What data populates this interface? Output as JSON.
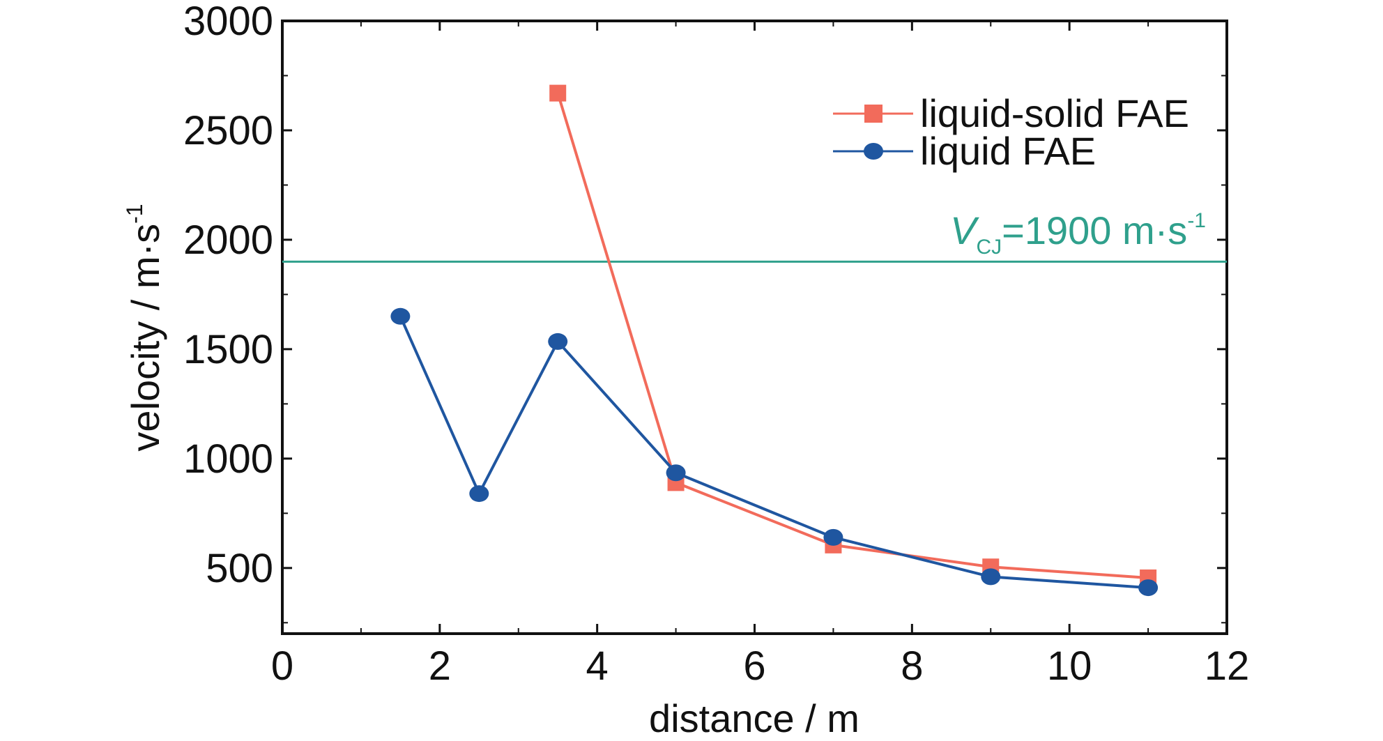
{
  "chart_data": {
    "type": "line",
    "xlabel": "distance / m",
    "ylabel": "velocity / m·s",
    "ylabel_sup": "-1",
    "xlim": [
      0,
      12
    ],
    "ylim": [
      200,
      3000
    ],
    "xticks": [
      0,
      2,
      4,
      6,
      8,
      10,
      12
    ],
    "yticks": [
      500,
      1000,
      1500,
      2000,
      2500,
      3000
    ],
    "grid": false,
    "legend_position": "top-right",
    "series": [
      {
        "name": "liquid-solid FAE",
        "color": "#f26b5b",
        "marker": "square",
        "x": [
          3.5,
          5,
          7,
          9,
          11
        ],
        "y": [
          2670,
          890,
          605,
          505,
          455
        ]
      },
      {
        "name": "liquid FAE",
        "color": "#1f56a0",
        "marker": "circle",
        "x": [
          1.5,
          2.5,
          3.5,
          5,
          7,
          9,
          11
        ],
        "y": [
          1650,
          840,
          1535,
          935,
          640,
          460,
          410
        ]
      }
    ],
    "reference_line": {
      "y": 1900,
      "color": "#2fa08c",
      "label_var": "V",
      "label_sub": "CJ",
      "label_main": "=1900 m·s",
      "label_sup": "-1"
    }
  }
}
